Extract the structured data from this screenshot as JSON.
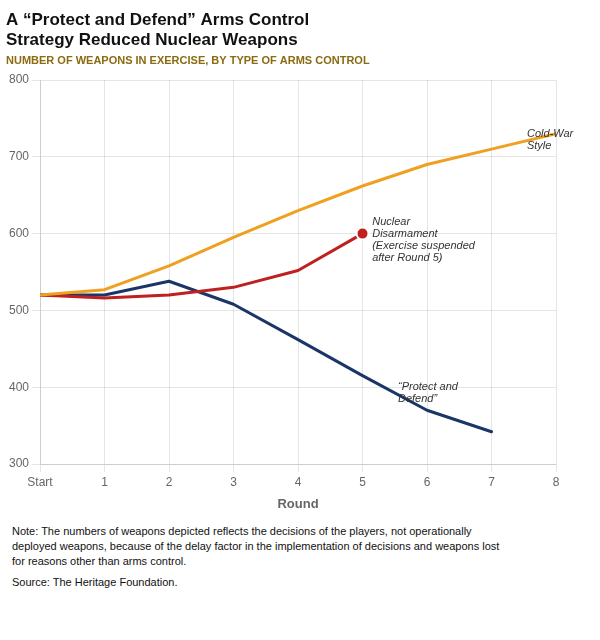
{
  "chart_data": {
    "type": "line",
    "title": [
      "A “Protect and Defend” Arms Control",
      "Strategy Reduced Nuclear Weapons"
    ],
    "subtitle": "NUMBER OF WEAPONS IN EXERCISE, BY TYPE OF ARMS CONTROL",
    "x_label": "Round",
    "xlim": [
      0,
      8
    ],
    "xticks": [
      {
        "value": 0,
        "label": "Start"
      },
      1,
      2,
      3,
      4,
      5,
      6,
      7,
      8
    ],
    "ylim": [
      300,
      800
    ],
    "yticks": [
      300,
      400,
      500,
      600,
      700,
      800
    ],
    "grid": true,
    "series": [
      {
        "x": [
          0,
          1,
          2,
          3,
          4,
          5,
          6,
          7,
          8
        ],
        "values": [
          520,
          527,
          558,
          595,
          630,
          662,
          690,
          710,
          730
        ],
        "color": "#f0a020"
      },
      {
        "x": [
          0,
          1,
          2,
          3,
          4,
          5
        ],
        "values": [
          520,
          516,
          520,
          530,
          552,
          600
        ],
        "color": "#bf2020"
      },
      {
        "x": [
          0,
          1,
          2,
          3,
          4,
          5,
          6,
          7
        ],
        "values": [
          520,
          520,
          538,
          508,
          462,
          415,
          370,
          342
        ],
        "color": "#1a3568"
      }
    ],
    "annotations": [
      {
        "text": "Cold-War\nStyle",
        "x": 7.55,
        "y": 722
      },
      {
        "text": "Nuclear\nDisarmament\n(Exercise suspended\nafter Round 5)",
        "x": 5.15,
        "y": 592
      },
      {
        "text": "“Protect and\nDefend”",
        "x": 5.55,
        "y": 393
      }
    ],
    "note": "Note: The numbers of weapons depicted reflects the decisions of the players, not operationally\ndeployed weapons, because of the delay factor in the implementation of decisions and weapons lost\nfor reasons other than arms control.",
    "source": "Source: The Heritage Foundation."
  }
}
